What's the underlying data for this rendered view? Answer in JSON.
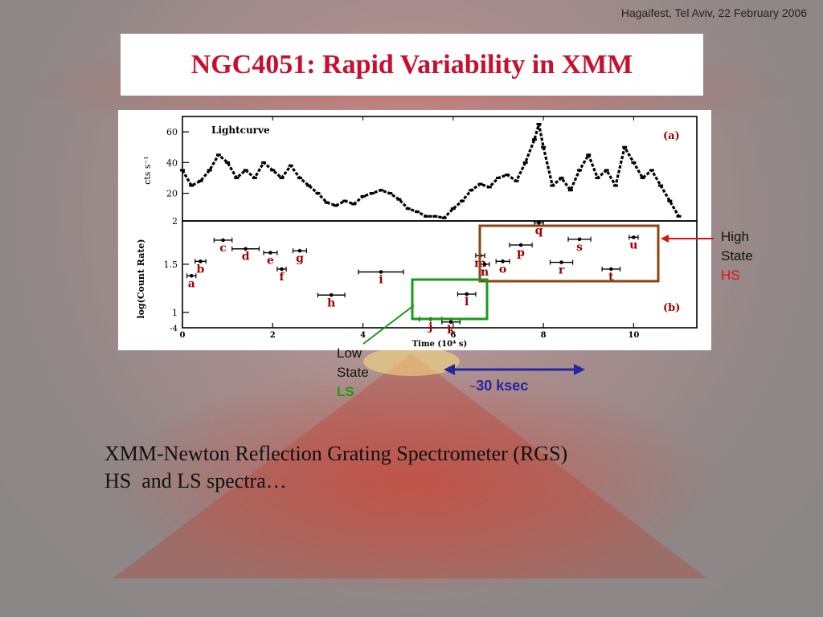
{
  "header": {
    "event_note": "Hagaifest, Tel Aviv, 22 February 2006"
  },
  "slide": {
    "title": "NGC4051: Rapid Variability in XMM"
  },
  "chart_data": [
    {
      "type": "line",
      "panel": "a",
      "panel_label": "(a)",
      "title": "Lightcurve",
      "xlabel": "Time (10⁴ s)",
      "ylabel": "cts s⁻¹",
      "xlim": [
        0,
        11.4
      ],
      "ylim": [
        2,
        70
      ],
      "yticks": [
        20,
        40,
        60
      ],
      "ytick_bottom": "2",
      "xticks": [
        0,
        2,
        4,
        6,
        8,
        10
      ],
      "x": [
        0,
        0.2,
        0.4,
        0.6,
        0.8,
        1.0,
        1.2,
        1.4,
        1.6,
        1.8,
        2.0,
        2.2,
        2.4,
        2.6,
        2.8,
        3.0,
        3.2,
        3.4,
        3.6,
        3.8,
        4.0,
        4.2,
        4.4,
        4.6,
        4.8,
        5.0,
        5.2,
        5.4,
        5.6,
        5.8,
        6.0,
        6.2,
        6.4,
        6.6,
        6.8,
        7.0,
        7.2,
        7.4,
        7.6,
        7.8,
        7.9,
        8.0,
        8.2,
        8.4,
        8.6,
        8.8,
        9.0,
        9.2,
        9.4,
        9.6,
        9.8,
        10.0,
        10.2,
        10.4,
        10.6,
        10.8,
        11.0
      ],
      "y": [
        35,
        25,
        28,
        35,
        45,
        40,
        30,
        35,
        30,
        40,
        35,
        30,
        38,
        30,
        25,
        20,
        14,
        12,
        15,
        13,
        18,
        20,
        22,
        20,
        16,
        10,
        8,
        5,
        5,
        4,
        10,
        15,
        22,
        26,
        24,
        30,
        32,
        28,
        40,
        55,
        65,
        50,
        25,
        30,
        22,
        35,
        45,
        30,
        35,
        25,
        50,
        40,
        30,
        35,
        25,
        15,
        5
      ]
    },
    {
      "type": "scatter",
      "panel": "b",
      "panel_label": "(b)",
      "xlabel": "Time (10⁴ s)",
      "ylabel": "log(Count Rate)",
      "xlim": [
        0,
        11.4
      ],
      "ylim": [
        0.84,
        1.95
      ],
      "yticks": [
        1,
        1.5
      ],
      "ytick_bottom": "-4",
      "xticks": [
        0,
        2,
        4,
        6,
        8,
        10
      ],
      "points": [
        {
          "label": "a",
          "x": 0.2,
          "y": 1.38,
          "xerr": 0.1
        },
        {
          "label": "b",
          "x": 0.4,
          "y": 1.53,
          "xerr": 0.12
        },
        {
          "label": "c",
          "x": 0.9,
          "y": 1.75,
          "xerr": 0.2
        },
        {
          "label": "d",
          "x": 1.4,
          "y": 1.66,
          "xerr": 0.3
        },
        {
          "label": "e",
          "x": 1.95,
          "y": 1.62,
          "xerr": 0.15
        },
        {
          "label": "f",
          "x": 2.2,
          "y": 1.45,
          "xerr": 0.1
        },
        {
          "label": "g",
          "x": 2.6,
          "y": 1.64,
          "xerr": 0.15
        },
        {
          "label": "h",
          "x": 3.3,
          "y": 1.18,
          "xerr": 0.3
        },
        {
          "label": "i",
          "x": 4.4,
          "y": 1.42,
          "xerr": 0.5
        },
        {
          "label": "j",
          "x": 5.5,
          "y": 0.93,
          "xerr": 0.25
        },
        {
          "label": "k",
          "x": 5.95,
          "y": 0.9,
          "xerr": 0.2
        },
        {
          "label": "l",
          "x": 6.3,
          "y": 1.19,
          "xerr": 0.2
        },
        {
          "label": "m",
          "x": 6.6,
          "y": 1.59,
          "xerr": 0.1
        },
        {
          "label": "n",
          "x": 6.7,
          "y": 1.5,
          "xerr": 0.1
        },
        {
          "label": "o",
          "x": 7.1,
          "y": 1.53,
          "xerr": 0.15
        },
        {
          "label": "p",
          "x": 7.5,
          "y": 1.7,
          "xerr": 0.25
        },
        {
          "label": "q",
          "x": 7.9,
          "y": 1.93,
          "xerr": 0.1
        },
        {
          "label": "r",
          "x": 8.4,
          "y": 1.52,
          "xerr": 0.25
        },
        {
          "label": "s",
          "x": 8.8,
          "y": 1.76,
          "xerr": 0.25
        },
        {
          "label": "t",
          "x": 9.5,
          "y": 1.45,
          "xerr": 0.2
        },
        {
          "label": "u",
          "x": 10.0,
          "y": 1.78,
          "xerr": 0.1
        }
      ]
    }
  ],
  "annotations": {
    "high_state": {
      "line1": "High",
      "line2": "State",
      "abbr": "HS",
      "color": "#e01010",
      "box_color": "#8b4513"
    },
    "low_state": {
      "line1": "Low",
      "line2": "State",
      "abbr": "LS",
      "color": "#14a014"
    },
    "span": {
      "tilde": "~",
      "label": "30 ksec",
      "color": "#2626a0"
    }
  },
  "body": {
    "line1": "XMM-Newton Reflection Grating Spectrometer (RGS)",
    "line2": "HS  and LS spectra…"
  }
}
